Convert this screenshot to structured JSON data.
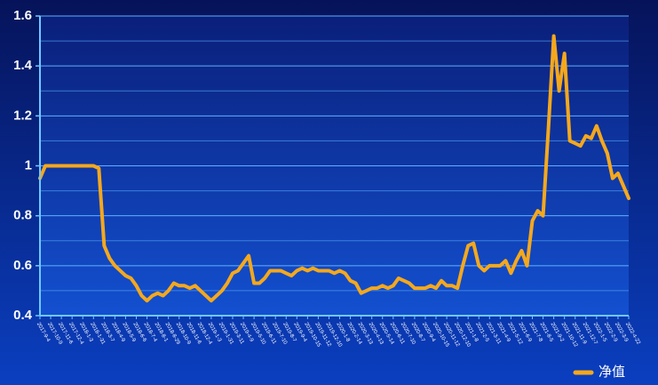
{
  "chart_data": {
    "type": "line",
    "categories": [
      "2017-9-4",
      null,
      "2017-10-9",
      null,
      "2017-11-6",
      null,
      "2017-12-4",
      null,
      "2018-1-3",
      null,
      "2018-1-31",
      null,
      "2018-3-7",
      null,
      "2018-4-9",
      null,
      "2018-5-9",
      null,
      "2018-6-6",
      null,
      "2018-7-4",
      null,
      "2018-8-1",
      null,
      "2018-8-29",
      null,
      "2018-10-9",
      null,
      "2018-11-6",
      null,
      "2018-12-4",
      null,
      "2019-1-3",
      null,
      "2019-1-31",
      null,
      "2019-3-11",
      null,
      "2019-4-9",
      null,
      "2019-5-10",
      null,
      "2019-6-11",
      null,
      "2019-7-10",
      null,
      "2019-8-7",
      null,
      "2019-9-4",
      null,
      "2019-10-15",
      null,
      "2019-11-12",
      null,
      "2019-12-10",
      null,
      "2020-1-8",
      null,
      "2020-2-14",
      null,
      "2020-3-13",
      null,
      "2020-4-13",
      null,
      "2020-5-14",
      null,
      "2020-6-11",
      null,
      "2020-7-10",
      null,
      "2020-8-7",
      null,
      "2020-9-4",
      null,
      "2020-10-15",
      null,
      "2020-11-12",
      null,
      "2020-12-10",
      null,
      "2021-1-8",
      null,
      "2021-2-5",
      null,
      "2021-3-11",
      null,
      "2021-4-9",
      null,
      "2021-5-12",
      null,
      "2021-6-9",
      null,
      "2021-7-8",
      null,
      "2021-8-5",
      null,
      "2021-9-2",
      null,
      "2021-10-12",
      null,
      "2021-11-9",
      null,
      "2021-12-7",
      null,
      "2022-1-5",
      null,
      "2022-2-9",
      null,
      "2022-3-9",
      null,
      "2022-4-22"
    ],
    "series": [
      {
        "name": "净值",
        "color": "#f5a81c",
        "values": [
          0.95,
          1.0,
          1.0,
          1.0,
          1.0,
          1.0,
          1.0,
          1.0,
          1.0,
          1.0,
          1.0,
          0.99,
          0.68,
          0.63,
          0.6,
          0.58,
          0.56,
          0.55,
          0.52,
          0.48,
          0.46,
          0.48,
          0.49,
          0.48,
          0.5,
          0.53,
          0.52,
          0.52,
          0.51,
          0.52,
          0.5,
          0.48,
          0.46,
          0.48,
          0.5,
          0.53,
          0.57,
          0.58,
          0.61,
          0.64,
          0.53,
          0.53,
          0.55,
          0.58,
          0.58,
          0.58,
          0.57,
          0.56,
          0.58,
          0.59,
          0.58,
          0.59,
          0.58,
          0.58,
          0.58,
          0.57,
          0.58,
          0.57,
          0.54,
          0.53,
          0.49,
          0.5,
          0.51,
          0.51,
          0.52,
          0.51,
          0.52,
          0.55,
          0.54,
          0.53,
          0.51,
          0.51,
          0.51,
          0.52,
          0.51,
          0.54,
          0.52,
          0.52,
          0.51,
          0.6,
          0.68,
          0.69,
          0.6,
          0.58,
          0.6,
          0.6,
          0.6,
          0.62,
          0.57,
          0.62,
          0.66,
          0.6,
          0.78,
          0.82,
          0.8,
          1.15,
          1.52,
          1.3,
          1.45,
          1.1,
          1.09,
          1.08,
          1.12,
          1.11,
          1.16,
          1.1,
          1.05,
          0.95,
          0.97,
          0.92,
          0.87
        ]
      }
    ],
    "ylim": [
      0.4,
      1.6
    ],
    "yticks": [
      0.4,
      0.6,
      0.8,
      1,
      1.2,
      1.4,
      1.6
    ],
    "minor_yticks": [
      0.5,
      0.7,
      0.9,
      1.1,
      1.3,
      1.5
    ],
    "grid": true,
    "legend": "bottom-right"
  }
}
